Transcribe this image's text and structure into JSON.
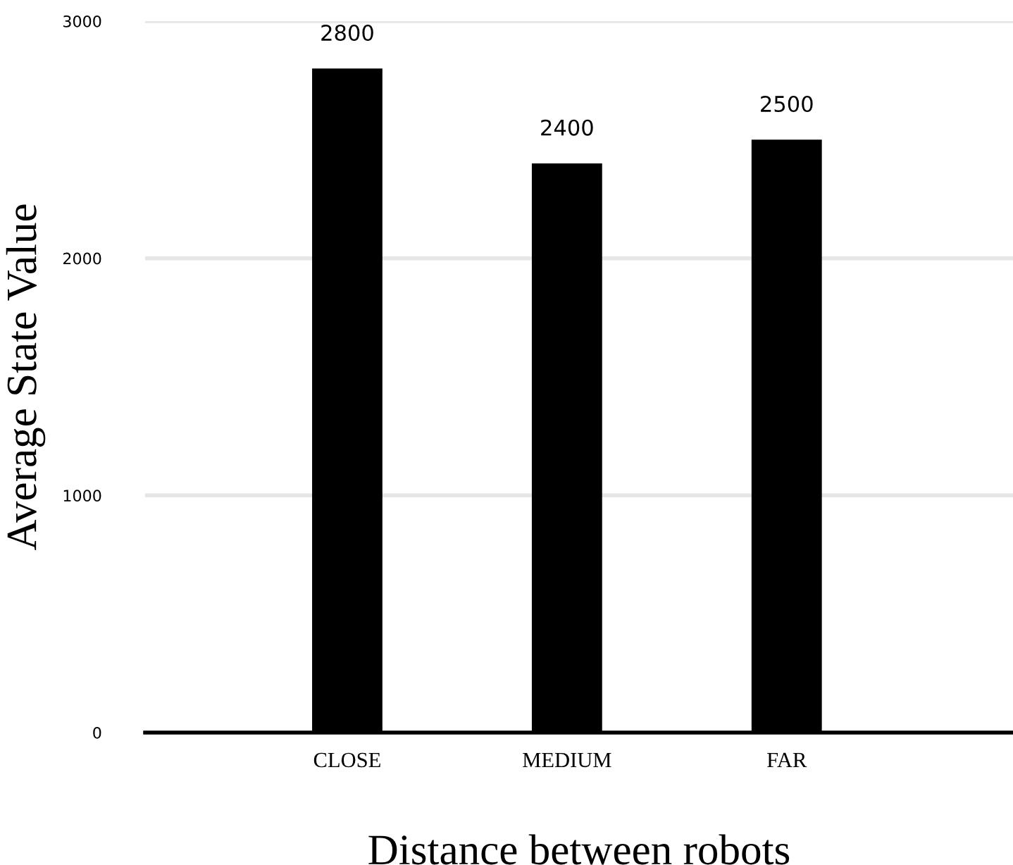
{
  "chart_data": {
    "type": "bar",
    "xlabel": "Distance between robots",
    "ylabel": "Average State Value",
    "categories": [
      "CLOSE",
      "MEDIUM",
      "FAR"
    ],
    "values": [
      2800,
      2400,
      2500
    ],
    "data_labels": true,
    "color": "#000000",
    "ylim": [
      0,
      3000
    ],
    "yticks": [
      0,
      1000,
      2000,
      3000
    ],
    "grid": "y",
    "legend": false
  }
}
